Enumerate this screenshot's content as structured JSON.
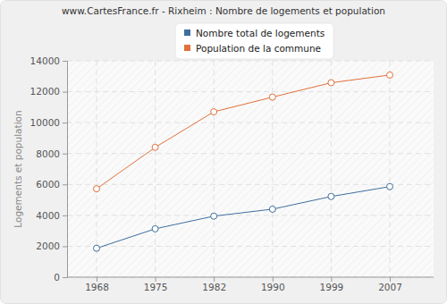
{
  "chart_data": {
    "type": "line",
    "title": "www.CartesFrance.fr - Rixheim : Nombre de logements et population",
    "y_label": "Logements et population",
    "categories": [
      "1968",
      "1975",
      "1982",
      "1990",
      "1999",
      "2007"
    ],
    "series": [
      {
        "name": "Nombre total de logements",
        "color": "#3f6f9e",
        "marker": "circle",
        "line_style": "solid",
        "values": [
          1870,
          3130,
          3950,
          4400,
          5220,
          5860
        ]
      },
      {
        "name": "Population de la commune",
        "color": "#e0713c",
        "marker": "circle",
        "line_style": "solid",
        "values": [
          5720,
          8400,
          10700,
          11650,
          12580,
          13080
        ]
      }
    ],
    "ylim": [
      0,
      14000
    ],
    "yticks": [
      0,
      2000,
      4000,
      6000,
      8000,
      10000,
      12000,
      14000
    ],
    "grid": true,
    "legend": "top"
  }
}
